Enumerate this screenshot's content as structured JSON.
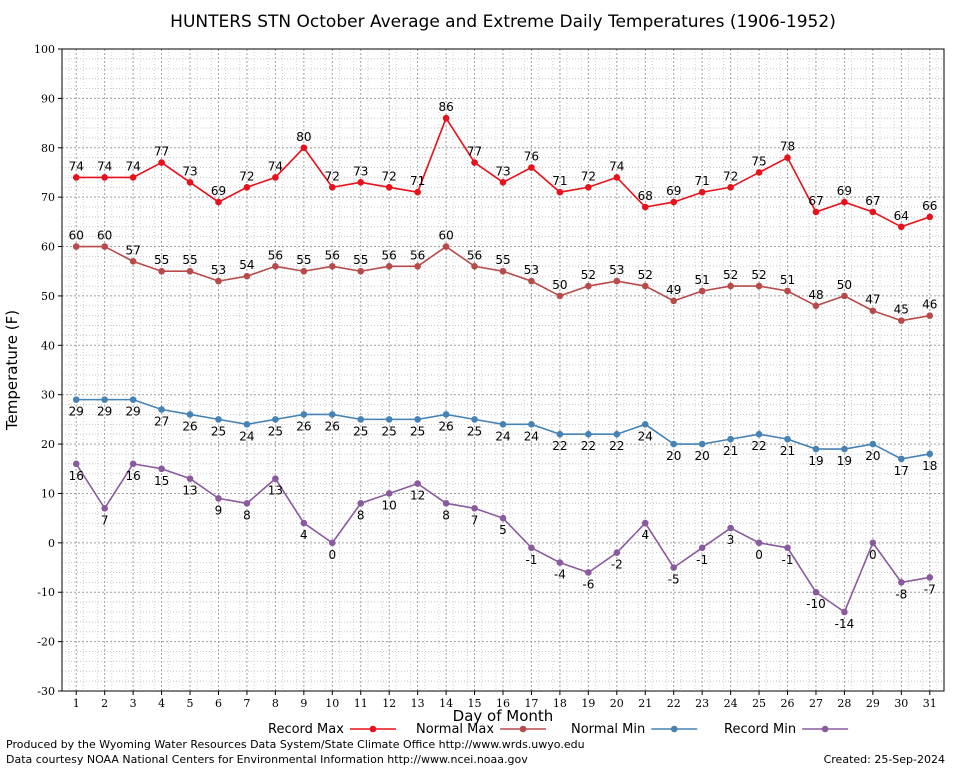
{
  "chart_data": {
    "type": "line",
    "title": "HUNTERS STN October Average and Extreme Daily Temperatures (1906-1952)",
    "xlabel": "Day of Month",
    "ylabel": "Temperature (F)",
    "ylim": [
      -30,
      100
    ],
    "yticks": [
      -30,
      -20,
      -10,
      0,
      10,
      20,
      30,
      40,
      50,
      60,
      70,
      80,
      90,
      100
    ],
    "x": [
      1,
      2,
      3,
      4,
      5,
      6,
      7,
      8,
      9,
      10,
      11,
      12,
      13,
      14,
      15,
      16,
      17,
      18,
      19,
      20,
      21,
      22,
      23,
      24,
      25,
      26,
      27,
      28,
      29,
      30,
      31
    ],
    "grid": true,
    "legend_position": "bottom",
    "series": [
      {
        "name": "Record Max",
        "color": "#e8101a",
        "label_pos": "above",
        "values": [
          74,
          74,
          74,
          77,
          73,
          69,
          72,
          74,
          80,
          72,
          73,
          72,
          71,
          86,
          77,
          73,
          76,
          71,
          72,
          74,
          68,
          69,
          71,
          72,
          75,
          78,
          67,
          69,
          67,
          64,
          66
        ]
      },
      {
        "name": "Normal Max",
        "color": "#b84a4a",
        "label_pos": "above",
        "values": [
          60,
          60,
          57,
          55,
          55,
          53,
          54,
          56,
          55,
          56,
          55,
          56,
          56,
          60,
          56,
          55,
          53,
          50,
          52,
          53,
          52,
          49,
          51,
          52,
          52,
          51,
          48,
          50,
          47,
          45,
          46
        ]
      },
      {
        "name": "Normal Min",
        "color": "#4682b4",
        "label_pos": "below",
        "values": [
          29,
          29,
          29,
          27,
          26,
          25,
          24,
          25,
          26,
          26,
          25,
          25,
          25,
          26,
          25,
          24,
          24,
          22,
          22,
          22,
          24,
          20,
          20,
          21,
          22,
          21,
          19,
          19,
          20,
          17,
          18
        ]
      },
      {
        "name": "Record Min",
        "color": "#8a5a9e",
        "label_pos": "below",
        "values": [
          16,
          7,
          16,
          15,
          13,
          9,
          8,
          13,
          4,
          0,
          8,
          10,
          12,
          8,
          7,
          5,
          -1,
          -4,
          -6,
          -2,
          4,
          -5,
          -1,
          3,
          0,
          -1,
          -10,
          -14,
          0,
          -8,
          -7
        ]
      }
    ]
  },
  "footer": {
    "produced_by": "Produced by the Wyoming Water Resources Data System/State Climate Office http://www.wrds.uwyo.edu",
    "courtesy": "Data courtesy NOAA National Centers for Environmental Information http://www.ncei.noaa.gov",
    "created": "Created:  25-Sep-2024"
  }
}
